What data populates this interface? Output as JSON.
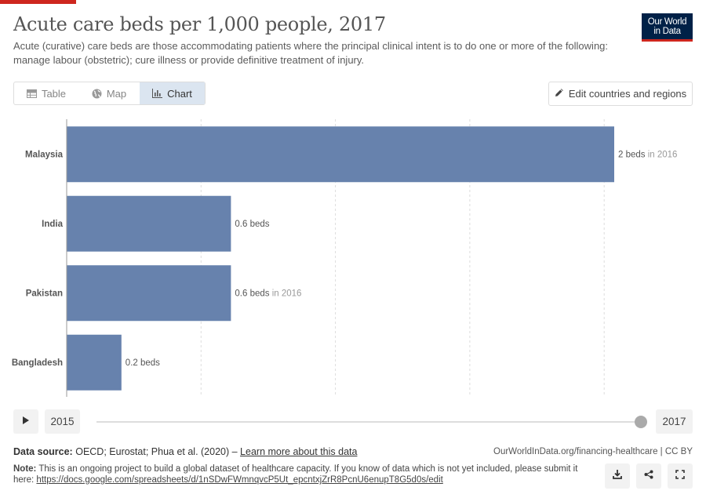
{
  "header": {
    "title": "Acute care beds per 1,000 people, 2017",
    "subtitle": "Acute (curative) care beds are those accommodating patients where the principal clinical intent is to do one or more of the following: manage labour (obstetric); cure illness or provide definitive treatment of injury.",
    "logo_line1": "Our World",
    "logo_line2": "in Data"
  },
  "tabs": [
    {
      "label": "Table",
      "icon": "table-icon",
      "active": false
    },
    {
      "label": "Map",
      "icon": "globe-icon",
      "active": false
    },
    {
      "label": "Chart",
      "icon": "chart-icon",
      "active": true
    }
  ],
  "edit_button": {
    "label": "Edit countries and regions",
    "icon": "pencil-icon"
  },
  "chart_data": {
    "type": "bar",
    "orientation": "horizontal",
    "categories": [
      "Malaysia",
      "India",
      "Pakistan",
      "Bangladesh"
    ],
    "values": [
      2.0,
      0.6,
      0.6,
      0.2
    ],
    "value_labels": [
      "2 beds",
      "0.6 beds",
      "0.6 beds",
      "0.2 beds"
    ],
    "year_notes": [
      "in 2016",
      "",
      "in 2016",
      ""
    ],
    "xlim": [
      0,
      2
    ],
    "grid": "vertical dashed",
    "bar_color": "#6782ad"
  },
  "timeline": {
    "start": "2015",
    "end": "2017",
    "position": 1.0
  },
  "footer": {
    "source_label": "Data source:",
    "source_text": "OECD; Eurostat; Phua et al. (2020) – ",
    "learn_more": "Learn more about this data",
    "url": "OurWorldInData.org/financing-healthcare | CC BY",
    "note_label": "Note:",
    "note_text": "This is an ongoing project to build a global dataset of healthcare capacity. If you know of data which is not yet included, please submit it here: ",
    "note_link": "https://docs.google.com/spreadsheets/d/1nSDwFWmnqvcP5Ut_epcntxjZrR8PcnU6enupT8G5d0s/edit"
  }
}
